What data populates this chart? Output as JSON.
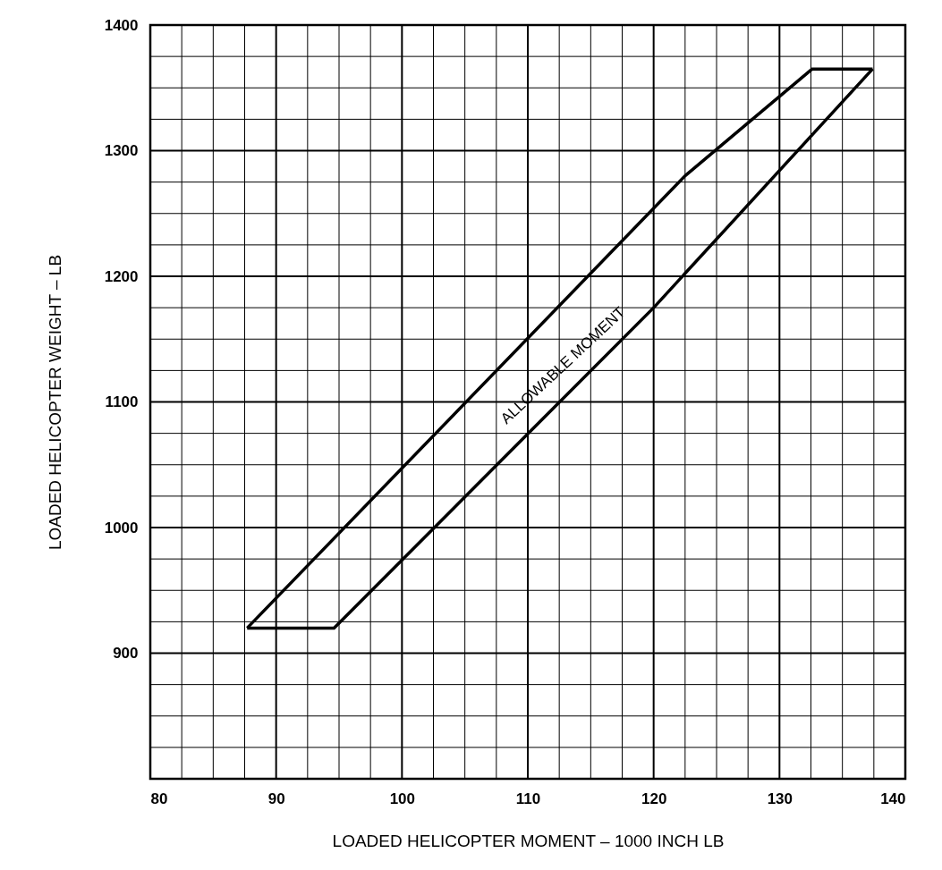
{
  "chart_data": {
    "type": "line",
    "xlabel": "LOADED HELICOPTER MOMENT – 1000 INCH LB",
    "ylabel": "LOADED HELICOPTER WEIGHT – LB",
    "series": [
      {
        "color": "#000000",
        "x": [
          87.7,
          122.5,
          132.6,
          137.4
        ],
        "values": [
          920,
          1280,
          1365,
          1365
        ]
      },
      {
        "color": "#000000",
        "x": [
          87.7,
          94.6,
          120,
          137.4
        ],
        "values": [
          920,
          920,
          1175,
          1365
        ]
      }
    ],
    "xlim": [
      80,
      140
    ],
    "xticks": [
      80,
      {
        "value": 82.5,
        "label": null
      },
      {
        "value": 85,
        "label": null
      },
      {
        "value": 87.5,
        "label": null
      },
      90,
      {
        "value": 92.5,
        "label": null
      },
      {
        "value": 95,
        "label": null
      },
      {
        "value": 97.5,
        "label": null
      },
      100,
      {
        "value": 102.5,
        "label": null
      },
      {
        "value": 105,
        "label": null
      },
      {
        "value": 107.5,
        "label": null
      },
      110,
      {
        "value": 112.5,
        "label": null
      },
      {
        "value": 115,
        "label": null
      },
      {
        "value": 117.5,
        "label": null
      },
      120,
      {
        "value": 122.5,
        "label": null
      },
      {
        "value": 125,
        "label": null
      },
      {
        "value": 127.5,
        "label": null
      },
      130,
      {
        "value": 132.5,
        "label": null
      },
      {
        "value": 135,
        "label": null
      },
      {
        "value": 137.5,
        "label": null
      },
      140
    ],
    "ylim": [
      800,
      1400
    ],
    "yticks": [
      {
        "value": 800,
        "label": null
      },
      {
        "value": 825,
        "label": null
      },
      {
        "value": 850,
        "label": null
      },
      {
        "value": 875,
        "label": null
      },
      900,
      {
        "value": 925,
        "label": null
      },
      {
        "value": 950,
        "label": null
      },
      {
        "value": 975,
        "label": null
      },
      1000,
      {
        "value": 1025,
        "label": null
      },
      {
        "value": 1050,
        "label": null
      },
      {
        "value": 1075,
        "label": null
      },
      1100,
      {
        "value": 1125,
        "label": null
      },
      {
        "value": 1150,
        "label": null
      },
      {
        "value": 1175,
        "label": null
      },
      1200,
      {
        "value": 1225,
        "label": null
      },
      {
        "value": 1250,
        "label": null
      },
      {
        "value": 1275,
        "label": null
      },
      1300,
      {
        "value": 1325,
        "label": null
      },
      {
        "value": 1350,
        "label": null
      },
      {
        "value": 1375,
        "label": null
      },
      1400
    ],
    "grid": true,
    "marker": "none",
    "line_style": "solid",
    "annotations": [
      "ALLOWABLE MOMENT"
    ]
  }
}
